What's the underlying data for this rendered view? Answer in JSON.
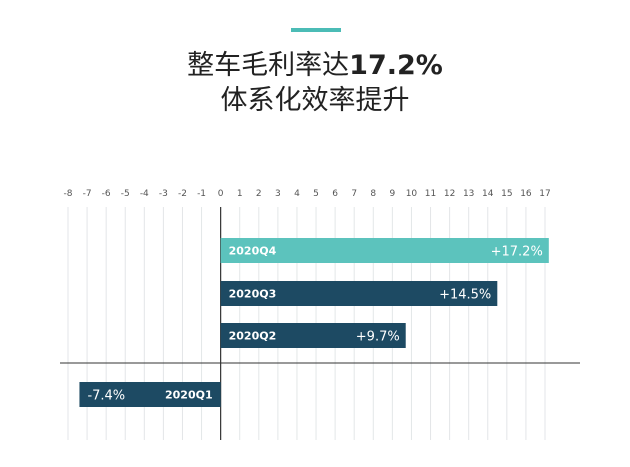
{
  "title": {
    "line1_prefix": "整车毛利率达",
    "line1_value": "17.2%",
    "line2": "体系化效率提升"
  },
  "colors": {
    "accent": "#4bbcb6",
    "highlight_bar": "#5cc3bd",
    "bar": "#1d4a63"
  },
  "chart_data": {
    "type": "bar",
    "orientation": "horizontal",
    "categories": [
      "2020Q4",
      "2020Q3",
      "2020Q2",
      "2020Q1"
    ],
    "values": [
      17.2,
      14.5,
      9.7,
      -7.4
    ],
    "value_labels": [
      "+17.2%",
      "+14.5%",
      "+9.7%",
      "-7.4%"
    ],
    "xlim": [
      -8,
      17
    ],
    "xticks": [
      "-8",
      "-7",
      "-6",
      "-5",
      "-4",
      "-3",
      "-2",
      "-1",
      "0",
      "1",
      "2",
      "3",
      "4",
      "5",
      "6",
      "7",
      "8",
      "9",
      "10",
      "11",
      "12",
      "13",
      "14",
      "15",
      "16",
      "17"
    ],
    "grid": true,
    "highlight_category": "2020Q4"
  }
}
